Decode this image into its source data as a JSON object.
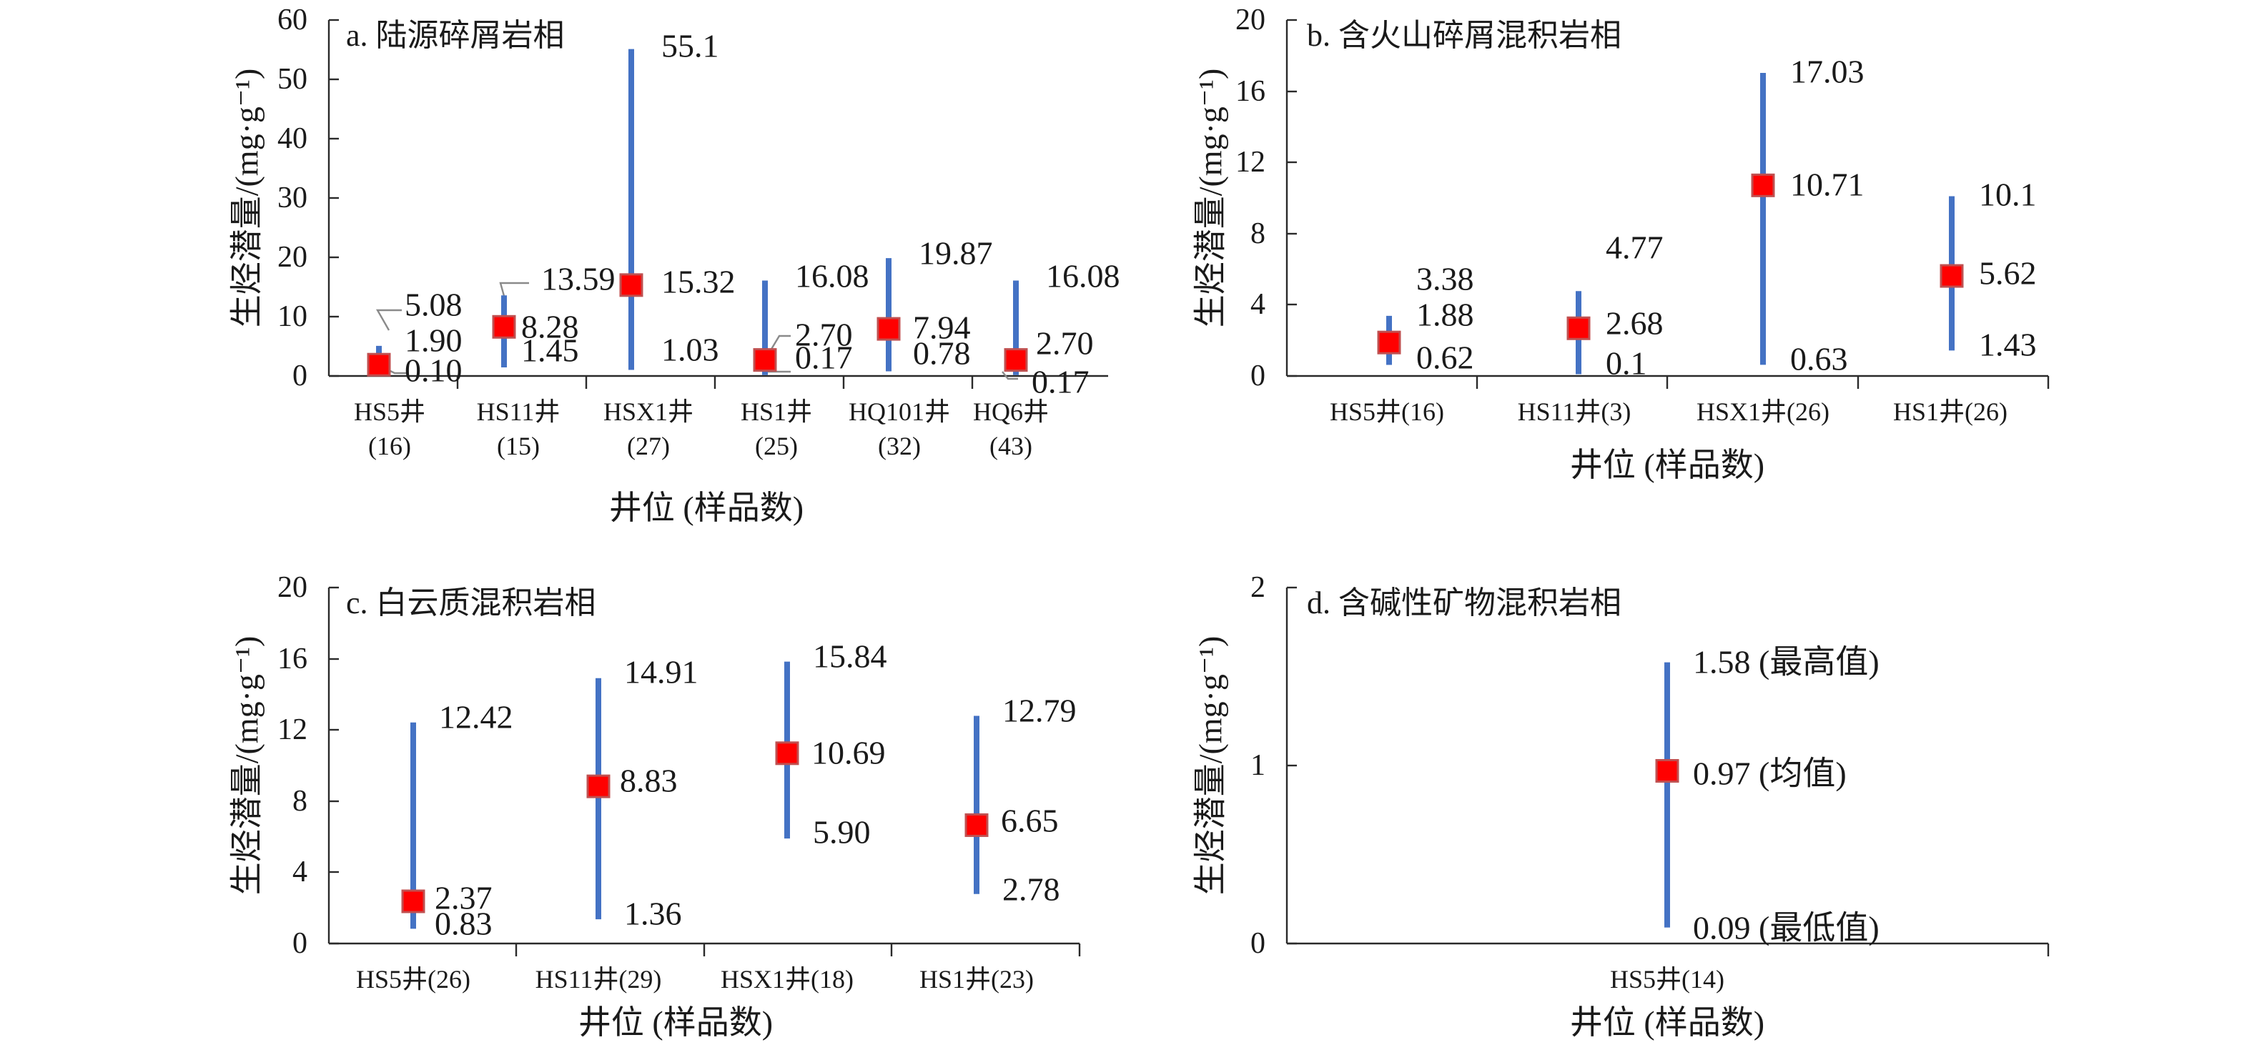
{
  "chart_data": [
    {
      "id": "a",
      "type": "range",
      "title": "a. 陆源碎屑岩相",
      "ylabel": "生烃潜量/(mg·g⁻¹)",
      "xlabel": "井位 (样品数)",
      "ylim": [
        0,
        60
      ],
      "yticks": [
        "0",
        "10",
        "20",
        "30",
        "40",
        "50",
        "60"
      ],
      "categories": [
        {
          "name": "HS5井",
          "count": "(16)",
          "max": 5.08,
          "mean": 1.9,
          "min": 0.1,
          "max_label": "5.08",
          "mean_label": "1.90",
          "min_label": "0.10"
        },
        {
          "name": "HS11井",
          "count": "(15)",
          "max": 13.59,
          "mean": 8.28,
          "min": 1.45,
          "max_label": "13.59",
          "mean_label": "8.28",
          "min_label": "1.45"
        },
        {
          "name": "HSX1井",
          "count": "(27)",
          "max": 55.1,
          "mean": 15.32,
          "min": 1.03,
          "max_label": "55.1",
          "mean_label": "15.32",
          "min_label": "1.03"
        },
        {
          "name": "HS1井",
          "count": "(25)",
          "max": 16.08,
          "mean": 2.7,
          "min": 0.17,
          "max_label": "16.08",
          "mean_label": "2.70",
          "min_label": "0.17"
        },
        {
          "name": "HQ101井",
          "count": "(32)",
          "max": 19.87,
          "mean": 7.94,
          "min": 0.78,
          "max_label": "19.87",
          "mean_label": "7.94",
          "min_label": "0.78"
        },
        {
          "name": "HQ6井",
          "count": "(43)",
          "max": 16.08,
          "mean": 2.7,
          "min": 0.17,
          "max_label": "16.08",
          "mean_label": "2.70",
          "min_label": "0.17"
        }
      ]
    },
    {
      "id": "b",
      "type": "range",
      "title": "b. 含火山碎屑混积岩相",
      "ylabel": "生烃潜量/(mg·g⁻¹)",
      "xlabel": "井位 (样品数)",
      "ylim": [
        0,
        20
      ],
      "yticks": [
        "0",
        "4",
        "8",
        "12",
        "16",
        "20"
      ],
      "categories": [
        {
          "name": "HS5井(16)",
          "max": 3.38,
          "mean": 1.88,
          "min": 0.62,
          "max_label": "3.38",
          "mean_label": "1.88",
          "min_label": "0.62"
        },
        {
          "name": "HS11井(3)",
          "max": 4.77,
          "mean": 2.68,
          "min": 0.1,
          "max_label": "4.77",
          "mean_label": "2.68",
          "min_label": "0.1"
        },
        {
          "name": "HSX1井(26)",
          "max": 17.03,
          "mean": 10.71,
          "min": 0.63,
          "max_label": "17.03",
          "mean_label": "10.71",
          "min_label": "0.63"
        },
        {
          "name": "HS1井(26)",
          "max": 10.1,
          "mean": 5.62,
          "min": 1.43,
          "max_label": "10.1",
          "mean_label": "5.62",
          "min_label": "1.43"
        }
      ]
    },
    {
      "id": "c",
      "type": "range",
      "title": "c. 白云质混积岩相",
      "ylabel": "生烃潜量/(mg·g⁻¹)",
      "xlabel": "井位 (样品数)",
      "ylim": [
        0,
        20
      ],
      "yticks": [
        "0",
        "4",
        "8",
        "12",
        "16",
        "20"
      ],
      "categories": [
        {
          "name": "HS5井(26)",
          "max": 12.42,
          "mean": 2.37,
          "min": 0.83,
          "max_label": "12.42",
          "mean_label": "2.37",
          "min_label": "0.83"
        },
        {
          "name": "HS11井(29)",
          "max": 14.91,
          "mean": 8.83,
          "min": 1.36,
          "max_label": "14.91",
          "mean_label": "8.83",
          "min_label": "1.36"
        },
        {
          "name": "HSX1井(18)",
          "max": 15.84,
          "mean": 10.69,
          "min": 5.9,
          "max_label": "15.84",
          "mean_label": "10.69",
          "min_label": "5.90"
        },
        {
          "name": "HS1井(23)",
          "max": 12.79,
          "mean": 6.65,
          "min": 2.78,
          "max_label": "12.79",
          "mean_label": "6.65",
          "min_label": "2.78"
        }
      ]
    },
    {
      "id": "d",
      "type": "range",
      "title": "d. 含碱性矿物混积岩相",
      "ylabel": "生烃潜量/(mg·g⁻¹)",
      "xlabel": "井位 (样品数)",
      "ylim": [
        0,
        2
      ],
      "yticks": [
        "0",
        "1",
        "2"
      ],
      "categories": [
        {
          "name": "HS5井(14)",
          "max": 1.58,
          "mean": 0.97,
          "min": 0.09,
          "max_label": "1.58 (最高值)",
          "mean_label": "0.97 (均值)",
          "min_label": "0.09 (最低值)"
        }
      ]
    }
  ],
  "colors": {
    "range_bar": "#4472c4",
    "mean_marker": "#ff0000",
    "leader_line": "#8a8a8a",
    "axis": "#2a2a2a"
  }
}
